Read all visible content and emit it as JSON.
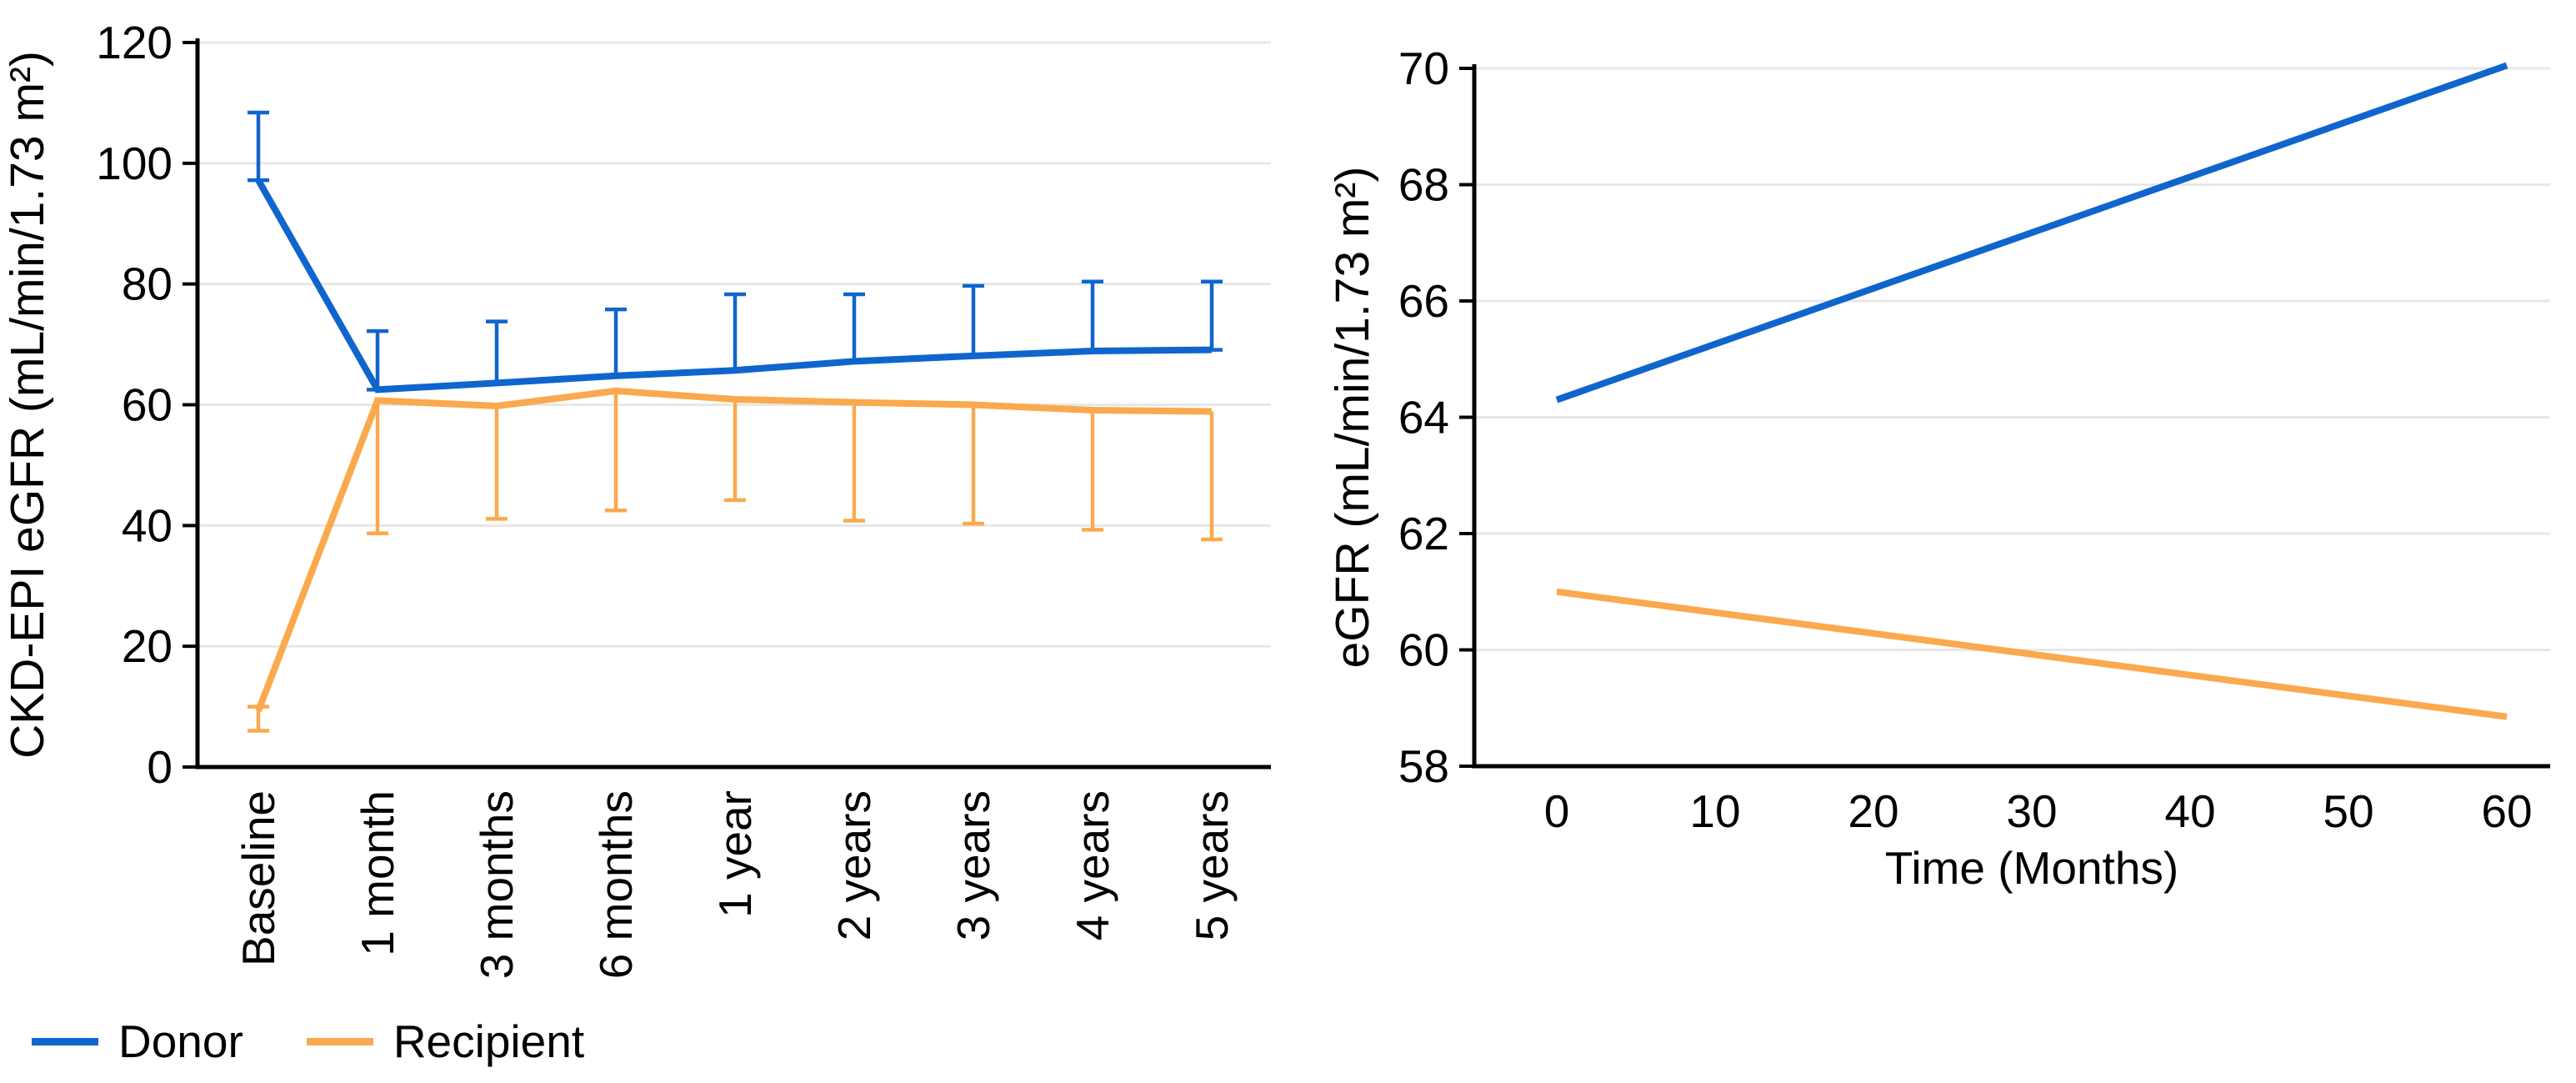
{
  "page": {
    "background": "#ffffff"
  },
  "chart_data": [
    {
      "type": "line",
      "title": "",
      "xlabel": "",
      "ylabel": "CKD-EPI eGFR (mL/min/1.73 m²)",
      "categories": [
        "Baseline",
        "1 month",
        "3 months",
        "6 months",
        "1 year",
        "2 years",
        "3 years",
        "4 years",
        "5 years"
      ],
      "ylim": [
        0,
        120
      ],
      "yticks": [
        0,
        20,
        40,
        60,
        80,
        100,
        120
      ],
      "grid": true,
      "x_tick_rotation": 90,
      "legend_position": "below-left",
      "series": [
        {
          "name": "Donor",
          "color": "#0f65cd",
          "values": [
            97.2,
            62.5,
            63.6,
            64.8,
            65.7,
            67.2,
            68.1,
            68.9,
            69.1
          ],
          "error_tip_upper": [
            108.4,
            72.2,
            73.8,
            75.8,
            78.3,
            78.3,
            79.7,
            80.4,
            80.4
          ],
          "error_tip_lower": [
            null,
            null,
            null,
            null,
            null,
            null,
            null,
            null,
            null
          ],
          "cap_at_point": true
        },
        {
          "name": "Recipient",
          "color": "#faa94e",
          "values": [
            9.3,
            60.7,
            59.8,
            62.3,
            60.9,
            60.4,
            60.0,
            59.1,
            58.9
          ],
          "error_tip_upper": [
            10.0,
            null,
            null,
            null,
            null,
            null,
            null,
            null,
            null
          ],
          "error_tip_lower": [
            6.0,
            38.7,
            41.1,
            42.5,
            44.2,
            40.8,
            40.3,
            39.3,
            37.7
          ],
          "cap_at_point": false
        }
      ]
    },
    {
      "type": "line",
      "title": "",
      "xlabel": "Time (Months)",
      "ylabel": "eGFR (mL/min/1.73 m²)",
      "xlim": [
        0,
        60
      ],
      "xticks": [
        0,
        10,
        20,
        30,
        40,
        50,
        60
      ],
      "ylim": [
        58,
        70
      ],
      "yticks": [
        58,
        60,
        62,
        64,
        66,
        68,
        70
      ],
      "grid": true,
      "series": [
        {
          "name": "Donor",
          "color": "#0f65cd",
          "points": [
            [
              0,
              64.3
            ],
            [
              60,
              70.05
            ]
          ]
        },
        {
          "name": "Recipient",
          "color": "#faa94e",
          "points": [
            [
              0,
              61.0
            ],
            [
              60,
              58.85
            ]
          ]
        }
      ]
    }
  ],
  "style": {
    "grid_color": "#e7e7e7",
    "axis_color": "#000000",
    "text_color": "#000000"
  }
}
